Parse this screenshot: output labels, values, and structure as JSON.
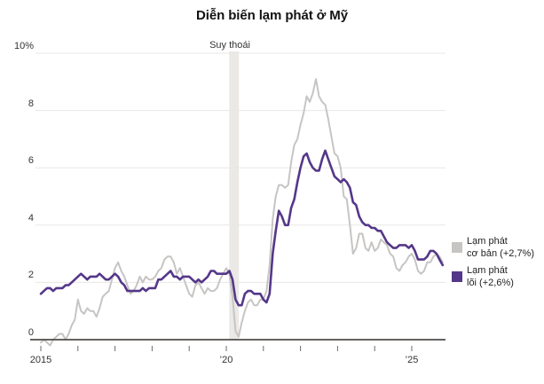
{
  "title": "Diễn biến lạm phát ở Mỹ",
  "annotations": {
    "recession_label": "Suy thoái"
  },
  "legend": {
    "items": [
      {
        "line1": "Lạm phát",
        "line2": "cơ bản (+2,7%)",
        "color": "#c7c5c3"
      },
      {
        "line1": "Lạm phát",
        "line2": "lõi (+2,6%)",
        "color": "#553789"
      }
    ]
  },
  "axes": {
    "y_tick_labels": [
      "0",
      "2",
      "4",
      "6",
      "8",
      "10%"
    ],
    "x_tick_labels": [
      {
        "t": 0,
        "text": "2015"
      },
      {
        "t": 5,
        "text": "’20"
      },
      {
        "t": 10,
        "text": "’25"
      }
    ]
  },
  "colors": {
    "background": "#ffffff",
    "gridline": "#e9e7e4",
    "axis": "#4f4c4a",
    "tick": "#6b6b6b",
    "band": "#ebe9e6",
    "headline": "#c7c5c3",
    "core": "#553789"
  },
  "chart_data": {
    "type": "line",
    "title": "Diễn biến lạm phát ở Mỹ",
    "x_unit": "month",
    "x_start": "2015-01",
    "x_end": "2025-11",
    "xticks_years": [
      2015,
      2016,
      2017,
      2018,
      2019,
      2020,
      2021,
      2022,
      2023,
      2024,
      2025
    ],
    "ylim": [
      -0.4,
      10
    ],
    "yticks": [
      0,
      2,
      4,
      6,
      8,
      10
    ],
    "grid": "horizontal-only",
    "legend_position": "right",
    "recession_band": {
      "start_year": 2020.08,
      "end_year": 2020.34,
      "label": "Suy thoái"
    },
    "series": [
      {
        "name": "Lạm phát cơ bản (+2,7%)",
        "color": "#c7c5c3",
        "stroke_width": 2,
        "values": [
          -0.1,
          0.0,
          -0.1,
          -0.2,
          0.0,
          0.1,
          0.2,
          0.2,
          0.0,
          0.2,
          0.5,
          0.7,
          1.4,
          1.0,
          0.9,
          1.1,
          1.0,
          1.0,
          0.8,
          1.1,
          1.5,
          1.6,
          1.7,
          2.1,
          2.5,
          2.7,
          2.4,
          2.2,
          1.9,
          1.6,
          1.7,
          1.9,
          2.2,
          2.0,
          2.2,
          2.1,
          2.1,
          2.2,
          2.4,
          2.5,
          2.8,
          2.9,
          2.9,
          2.7,
          2.3,
          2.5,
          2.2,
          1.9,
          1.6,
          1.5,
          1.9,
          2.0,
          1.8,
          1.6,
          1.8,
          1.7,
          1.7,
          1.8,
          2.1,
          2.3,
          2.5,
          2.3,
          1.5,
          0.3,
          0.1,
          0.6,
          1.0,
          1.3,
          1.4,
          1.2,
          1.2,
          1.4,
          1.4,
          1.7,
          2.6,
          4.2,
          5.0,
          5.4,
          5.4,
          5.3,
          5.4,
          6.2,
          6.8,
          7.0,
          7.5,
          7.9,
          8.5,
          8.3,
          8.6,
          9.1,
          8.5,
          8.3,
          8.2,
          7.7,
          7.1,
          6.5,
          6.4,
          6.0,
          5.0,
          4.9,
          4.0,
          3.0,
          3.2,
          3.7,
          3.7,
          3.2,
          3.1,
          3.4,
          3.1,
          3.2,
          3.5,
          3.4,
          3.3,
          3.0,
          2.9,
          2.5,
          2.4,
          2.6,
          2.7,
          2.9,
          3.0,
          2.8,
          2.4,
          2.3,
          2.4,
          2.7,
          2.7,
          2.9,
          3.0,
          2.9,
          2.7
        ]
      },
      {
        "name": "Lạm phát lõi (+2,6%)",
        "color": "#553789",
        "stroke_width": 2.6,
        "values": [
          1.6,
          1.7,
          1.8,
          1.8,
          1.7,
          1.8,
          1.8,
          1.8,
          1.9,
          1.9,
          2.0,
          2.1,
          2.2,
          2.3,
          2.2,
          2.1,
          2.2,
          2.2,
          2.2,
          2.3,
          2.2,
          2.1,
          2.1,
          2.2,
          2.3,
          2.2,
          2.0,
          1.9,
          1.7,
          1.7,
          1.7,
          1.7,
          1.7,
          1.8,
          1.7,
          1.8,
          1.8,
          1.8,
          2.1,
          2.1,
          2.2,
          2.3,
          2.4,
          2.2,
          2.2,
          2.1,
          2.2,
          2.2,
          2.2,
          2.1,
          2.0,
          2.1,
          2.0,
          2.1,
          2.2,
          2.4,
          2.4,
          2.3,
          2.3,
          2.3,
          2.3,
          2.4,
          2.1,
          1.4,
          1.2,
          1.2,
          1.6,
          1.7,
          1.7,
          1.6,
          1.6,
          1.6,
          1.4,
          1.3,
          1.6,
          3.0,
          3.8,
          4.5,
          4.3,
          4.0,
          4.0,
          4.6,
          4.9,
          5.5,
          6.0,
          6.4,
          6.5,
          6.2,
          6.0,
          5.9,
          5.9,
          6.3,
          6.6,
          6.3,
          6.0,
          5.7,
          5.6,
          5.5,
          5.6,
          5.5,
          5.3,
          4.8,
          4.7,
          4.3,
          4.1,
          4.0,
          4.0,
          3.9,
          3.9,
          3.8,
          3.8,
          3.6,
          3.4,
          3.3,
          3.2,
          3.2,
          3.3,
          3.3,
          3.3,
          3.2,
          3.3,
          3.1,
          2.8,
          2.8,
          2.8,
          2.9,
          3.1,
          3.1,
          3.0,
          2.8,
          2.6
        ]
      }
    ]
  }
}
